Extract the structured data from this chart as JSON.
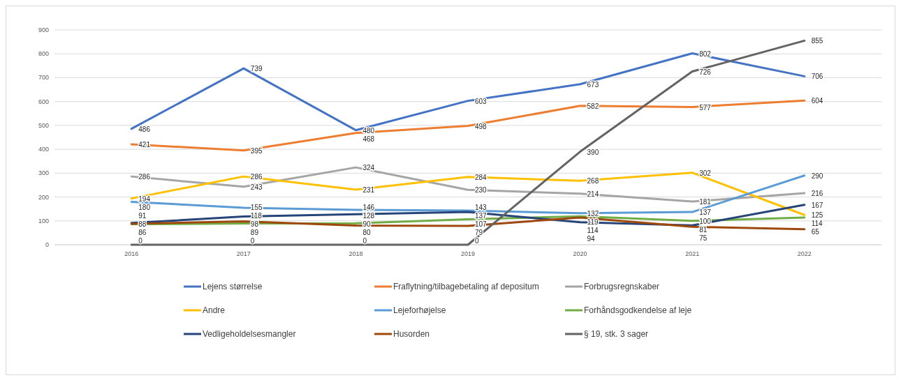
{
  "chart_data": {
    "type": "line",
    "categories": [
      "2016",
      "2017",
      "2018",
      "2019",
      "2020",
      "2021",
      "2022"
    ],
    "ylim": [
      0,
      900
    ],
    "yticks": [
      0,
      100,
      200,
      300,
      400,
      500,
      600,
      700,
      800,
      900
    ],
    "grid": "y",
    "legend": "bottom",
    "data_labels": true,
    "marker": "none",
    "line_style": "solid",
    "series": [
      {
        "name": "Lejens størrelse",
        "color": "#4472c4",
        "values": [
          486,
          739,
          480,
          603,
          673,
          802,
          706
        ]
      },
      {
        "name": "Fraflytning/tilbagebetaling af depositum",
        "color": "#ed7d31",
        "values": [
          421,
          395,
          468,
          498,
          582,
          577,
          604
        ]
      },
      {
        "name": "Forbrugsregnskaber",
        "color": "#a5a5a5",
        "values": [
          286,
          243,
          324,
          230,
          214,
          181,
          216
        ]
      },
      {
        "name": "Andre",
        "color": "#ffc000",
        "values": [
          194,
          286,
          231,
          284,
          268,
          302,
          125
        ]
      },
      {
        "name": "Lejeforhøjelse",
        "color": "#5b9bd5",
        "values": [
          180,
          155,
          146,
          143,
          132,
          137,
          290
        ]
      },
      {
        "name": "Forhåndsgodkendelse af leje",
        "color": "#70ad47",
        "values": [
          86,
          89,
          90,
          107,
          119,
          100,
          114
        ]
      },
      {
        "name": "Vedligeholdelsesmangler",
        "color": "#264478",
        "values": [
          91,
          118,
          128,
          137,
          94,
          81,
          167
        ]
      },
      {
        "name": "Husorden",
        "color": "#9e480e",
        "values": [
          88,
          98,
          80,
          79,
          114,
          75,
          65
        ]
      },
      {
        "name": "§ 19, stk. 3 sager",
        "color": "#636363",
        "values": [
          0,
          0,
          0,
          0,
          390,
          726,
          855
        ]
      }
    ]
  }
}
